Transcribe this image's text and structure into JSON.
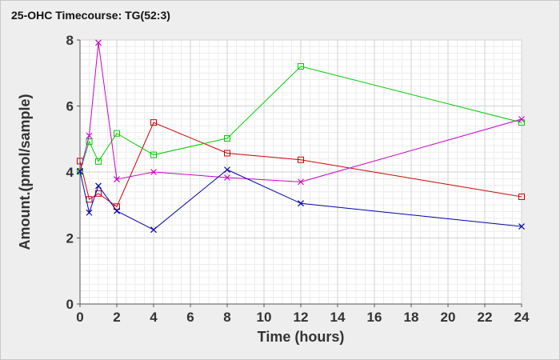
{
  "chart_data": {
    "type": "line",
    "title": "25-OHC Timecourse: TG(52:3)",
    "xlabel": "Time (hours)",
    "ylabel": "Amount.(pmol/sample)",
    "xlim": [
      0,
      24
    ],
    "ylim": [
      0,
      8
    ],
    "x_ticks": [
      0,
      2,
      4,
      6,
      8,
      10,
      12,
      14,
      16,
      18,
      20,
      22,
      24
    ],
    "y_ticks": [
      0,
      2,
      4,
      6,
      8
    ],
    "grid": true,
    "legend": "none",
    "series": [
      {
        "color": "#cc0000",
        "marker": "square",
        "x": [
          0,
          0.5,
          1,
          2,
          4,
          8,
          12,
          24
        ],
        "y": [
          4.33,
          3.17,
          3.35,
          2.95,
          5.5,
          4.57,
          4.37,
          3.25
        ]
      },
      {
        "color": "#00cc00",
        "marker": "square",
        "x": [
          0,
          0.5,
          1,
          2,
          4,
          8,
          12,
          24
        ],
        "y": [
          4.02,
          4.92,
          4.32,
          5.17,
          4.52,
          5.02,
          7.2,
          5.5
        ]
      },
      {
        "color": "#cc00cc",
        "marker": "cross",
        "x": [
          0,
          0.5,
          1,
          2,
          4,
          8,
          12,
          24
        ],
        "y": [
          4.02,
          5.1,
          7.92,
          3.78,
          4.0,
          3.83,
          3.7,
          5.6
        ]
      },
      {
        "color": "#0000aa",
        "marker": "cross",
        "x": [
          0,
          0.5,
          1,
          2,
          4,
          8,
          12,
          24
        ],
        "y": [
          4.02,
          2.77,
          3.58,
          2.82,
          2.25,
          4.07,
          3.05,
          2.35
        ]
      }
    ]
  }
}
